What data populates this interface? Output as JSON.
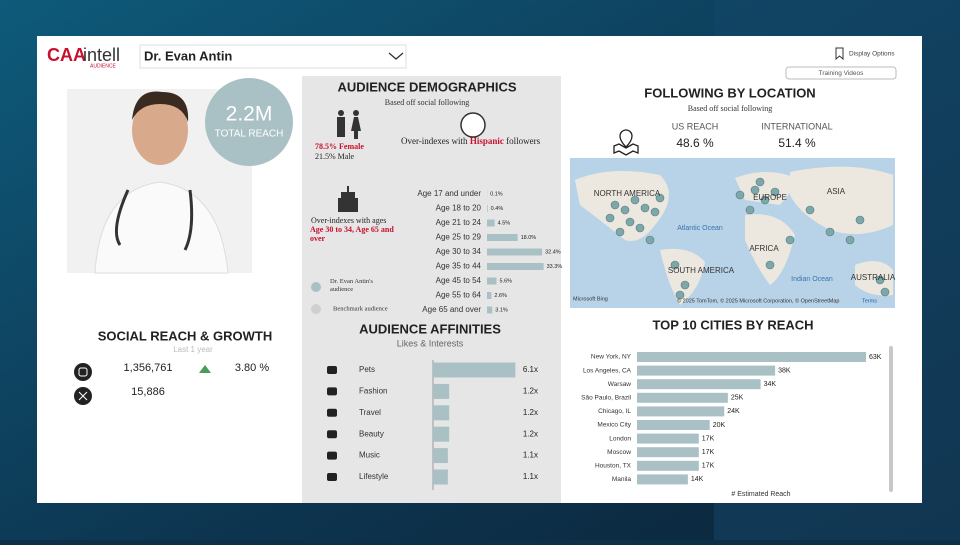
{
  "header": {
    "logo_brand": "CAA",
    "logo_product": "intell",
    "logo_sub": "AUDIENCE",
    "profile_select": "Dr. Evan Antin",
    "display_options": "Display Options",
    "training_videos": "Training Videos"
  },
  "profile": {
    "total_reach": "2.2M",
    "total_reach_label": "TOTAL REACH"
  },
  "social": {
    "title": "SOCIAL REACH & GROWTH",
    "subtitle": "Last 1 year",
    "instagram_followers": "1,356,761",
    "instagram_growth": "3.80 %",
    "x_followers": "15,886"
  },
  "demographics": {
    "title": "AUDIENCE DEMOGRAPHICS",
    "subtitle": "Based off social following",
    "female": "78.5% Female",
    "male": "21.5% Male",
    "ethnicity_prefix": "Over-indexes with ",
    "ethnicity": "Hispanic",
    "ethnicity_suffix": " followers",
    "age_note": "Over-indexes with ages",
    "age_highlight": "Age 30 to 34, Age 65 and over",
    "legend": [
      "Dr. Evan Antin's audience",
      "Benchmark audience"
    ],
    "age_chart": {
      "type": "bar",
      "color": "#a9c1c5",
      "categories": [
        "Age 17 and under",
        "Age 18 to 20",
        "Age 21 to 24",
        "Age 25 to 29",
        "Age 30 to 34",
        "Age 35 to 44",
        "Age 45 to 54",
        "Age 55 to 64",
        "Age 65 and over"
      ],
      "values": [
        0.1,
        0.4,
        4.5,
        18,
        32.4,
        33.3,
        5.6,
        2.6,
        3.1
      ],
      "value_labels": [
        "0.1%",
        "0.4%",
        "4.5%",
        "18.0%",
        "32.4%",
        "33.3%",
        "5.6%",
        "2.6%",
        "3.1%"
      ]
    }
  },
  "affinities": {
    "title": "AUDIENCE AFFINITIES",
    "subtitle": "Likes & Interests",
    "chart": {
      "type": "bar",
      "color": "#a9c1c5",
      "categories": [
        "Pets",
        "Fashion",
        "Travel",
        "Beauty",
        "Music",
        "Lifestyle"
      ],
      "values": [
        6.1,
        1.2,
        1.2,
        1.2,
        1.1,
        1.1
      ],
      "value_labels": [
        "6.1x",
        "1.2x",
        "1.2x",
        "1.2x",
        "1.1x",
        "1.1x"
      ]
    }
  },
  "location": {
    "title": "FOLLOWING BY LOCATION",
    "subtitle": "Based off social following",
    "us_label": "US REACH",
    "us_value": "48.6 %",
    "intl_label": "INTERNATIONAL",
    "intl_value": "51.4 %",
    "map_labels": [
      "NORTH AMERICA",
      "EUROPE",
      "ASIA",
      "Atlantic Ocean",
      "AFRICA",
      "SOUTH AMERICA",
      "Indian Ocean",
      "AUSTRALIA"
    ],
    "map_credit_brand": "Microsoft Bing",
    "map_credit": "© 2025 TomTom, © 2025 Microsoft Corporation, © OpenStreetMap",
    "map_terms": "Terms"
  },
  "cities": {
    "title": "TOP 10 CITIES BY REACH",
    "chart": {
      "type": "bar",
      "color": "#a9c1c5",
      "x_label": "# Estimated Reach",
      "categories": [
        "New York, NY",
        "Los Angeles, CA",
        "Warsaw",
        "São Paulo, Brazil",
        "Chicago, IL",
        "Mexico City",
        "London",
        "Moscow",
        "Houston, TX",
        "Manila"
      ],
      "values": [
        63000,
        38000,
        34000,
        25000,
        24000,
        20000,
        17000,
        17000,
        17000,
        14000
      ],
      "value_labels": [
        "63K",
        "38K",
        "34K",
        "25K",
        "24K",
        "20K",
        "17K",
        "17K",
        "17K",
        "14K"
      ]
    }
  }
}
